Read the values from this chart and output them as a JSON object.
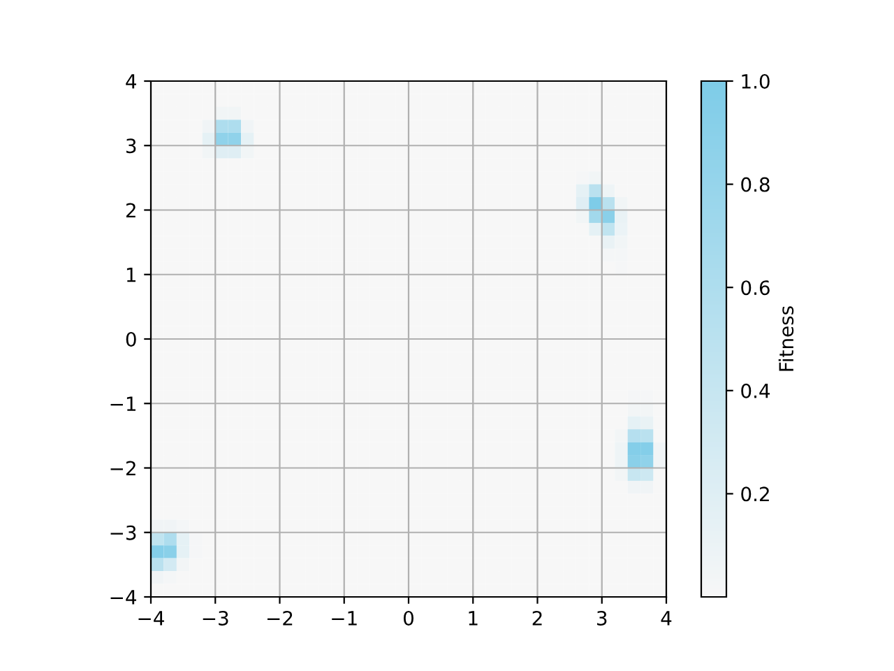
{
  "chart_data": {
    "type": "heatmap",
    "clabel": "Fitness",
    "colors": [
      "#f7f7f7",
      "#7ecce8"
    ],
    "clim": [
      0,
      1
    ],
    "cticks": [
      0.2,
      0.4,
      0.6,
      0.8,
      {
        "value": 1,
        "label": "1.0"
      }
    ],
    "xlim": [
      -4,
      4
    ],
    "ylim": [
      -4,
      4
    ],
    "xticks": [
      {
        "value": -4,
        "label": "−4"
      },
      {
        "value": -3,
        "label": "−3"
      },
      {
        "value": -2,
        "label": "−2"
      },
      {
        "value": -1,
        "label": "−1"
      },
      0,
      1,
      2,
      3,
      4
    ],
    "yticks": [
      {
        "value": -4,
        "label": "−4"
      },
      {
        "value": -3,
        "label": "−3"
      },
      {
        "value": -2,
        "label": "−2"
      },
      {
        "value": -1,
        "label": "−1"
      },
      0,
      1,
      2,
      3,
      4
    ],
    "grid": true,
    "cells": [
      [
        0,
        0,
        0,
        0,
        0,
        0,
        0,
        0,
        0,
        0,
        0,
        0,
        0,
        0,
        0,
        0,
        0,
        0,
        0,
        0,
        0,
        0,
        0,
        0,
        0,
        0,
        0,
        0,
        0,
        0,
        0,
        0,
        0,
        0,
        0,
        0,
        0,
        0,
        0,
        0
      ],
      [
        0,
        0,
        0,
        0,
        0,
        0,
        0,
        0,
        0,
        0,
        0,
        0,
        0,
        0,
        0,
        0,
        0,
        0,
        0,
        0,
        0,
        0,
        0,
        0,
        0,
        0,
        0,
        0,
        0,
        0,
        0,
        0,
        0,
        0,
        0,
        0,
        0,
        0,
        0,
        0
      ],
      [
        0,
        0,
        0,
        0,
        0,
        0.05,
        0.05,
        0,
        0,
        0,
        0,
        0,
        0,
        0,
        0,
        0,
        0,
        0,
        0,
        0,
        0,
        0,
        0,
        0,
        0,
        0,
        0,
        0,
        0,
        0,
        0,
        0,
        0,
        0,
        0,
        0,
        0,
        0,
        0,
        0
      ],
      [
        0,
        0,
        0,
        0,
        0.06,
        0.6,
        0.6,
        0.06,
        0,
        0,
        0,
        0,
        0,
        0,
        0,
        0,
        0,
        0,
        0,
        0,
        0,
        0,
        0,
        0,
        0,
        0,
        0,
        0,
        0,
        0,
        0,
        0,
        0,
        0,
        0,
        0,
        0,
        0,
        0,
        0
      ],
      [
        0,
        0,
        0,
        0,
        0.15,
        0.85,
        0.85,
        0.15,
        0,
        0,
        0,
        0,
        0,
        0,
        0,
        0,
        0,
        0,
        0,
        0,
        0,
        0,
        0,
        0,
        0,
        0,
        0,
        0,
        0,
        0,
        0,
        0,
        0,
        0,
        0,
        0,
        0,
        0,
        0,
        0
      ],
      [
        0,
        0,
        0,
        0,
        0.05,
        0.2,
        0.2,
        0.05,
        0,
        0,
        0,
        0,
        0,
        0,
        0,
        0,
        0,
        0,
        0,
        0,
        0,
        0,
        0,
        0,
        0,
        0,
        0,
        0,
        0,
        0,
        0,
        0,
        0,
        0,
        0,
        0,
        0,
        0,
        0,
        0
      ],
      [
        0,
        0,
        0,
        0,
        0,
        0,
        0,
        0,
        0,
        0,
        0,
        0,
        0,
        0,
        0,
        0,
        0,
        0,
        0,
        0,
        0,
        0,
        0,
        0,
        0,
        0,
        0,
        0,
        0,
        0,
        0,
        0,
        0,
        0,
        0,
        0,
        0,
        0,
        0,
        0
      ],
      [
        0,
        0,
        0,
        0,
        0,
        0,
        0,
        0,
        0,
        0,
        0,
        0,
        0,
        0,
        0,
        0,
        0,
        0,
        0,
        0,
        0,
        0,
        0,
        0,
        0,
        0,
        0,
        0,
        0,
        0,
        0,
        0,
        0,
        0.02,
        0.05,
        0,
        0,
        0,
        0,
        0
      ],
      [
        0,
        0,
        0,
        0,
        0,
        0,
        0,
        0,
        0,
        0,
        0,
        0,
        0,
        0,
        0,
        0,
        0,
        0,
        0,
        0,
        0,
        0,
        0,
        0,
        0,
        0,
        0,
        0,
        0,
        0,
        0,
        0,
        0,
        0.15,
        0.5,
        0.08,
        0,
        0,
        0,
        0
      ],
      [
        0,
        0,
        0,
        0,
        0,
        0,
        0,
        0,
        0,
        0,
        0,
        0,
        0,
        0,
        0,
        0,
        0,
        0,
        0,
        0,
        0,
        0,
        0,
        0,
        0,
        0,
        0,
        0,
        0,
        0,
        0,
        0,
        0,
        0.2,
        1,
        0.5,
        0.05,
        0,
        0,
        0
      ],
      [
        0,
        0,
        0,
        0,
        0,
        0,
        0,
        0,
        0,
        0,
        0,
        0,
        0,
        0,
        0,
        0,
        0,
        0,
        0,
        0,
        0,
        0,
        0,
        0,
        0,
        0,
        0,
        0,
        0,
        0,
        0,
        0,
        0,
        0.05,
        0.7,
        0.9,
        0.12,
        0,
        0,
        0
      ],
      [
        0,
        0,
        0,
        0,
        0,
        0,
        0,
        0,
        0,
        0,
        0,
        0,
        0,
        0,
        0,
        0,
        0,
        0,
        0,
        0,
        0,
        0,
        0,
        0,
        0,
        0,
        0,
        0,
        0,
        0,
        0,
        0,
        0,
        0,
        0.15,
        0.45,
        0.1,
        0,
        0,
        0
      ],
      [
        0,
        0,
        0,
        0,
        0,
        0,
        0,
        0,
        0,
        0,
        0,
        0,
        0,
        0,
        0,
        0,
        0,
        0,
        0,
        0,
        0,
        0,
        0,
        0,
        0,
        0,
        0,
        0,
        0,
        0,
        0,
        0,
        0,
        0,
        0,
        0.12,
        0.05,
        0,
        0,
        0
      ],
      [
        0,
        0,
        0,
        0,
        0,
        0,
        0,
        0,
        0,
        0,
        0,
        0,
        0,
        0,
        0,
        0,
        0,
        0,
        0,
        0,
        0,
        0,
        0,
        0,
        0,
        0,
        0,
        0,
        0,
        0,
        0,
        0,
        0,
        0,
        0,
        0.03,
        0.03,
        0,
        0,
        0
      ],
      [
        0,
        0,
        0,
        0,
        0,
        0,
        0,
        0,
        0,
        0,
        0,
        0,
        0,
        0,
        0,
        0,
        0,
        0,
        0,
        0,
        0,
        0,
        0,
        0,
        0,
        0,
        0,
        0,
        0,
        0,
        0,
        0,
        0,
        0,
        0,
        0,
        0.02,
        0,
        0,
        0
      ],
      [
        0,
        0,
        0,
        0,
        0,
        0,
        0,
        0,
        0,
        0,
        0,
        0,
        0,
        0,
        0,
        0,
        0,
        0,
        0,
        0,
        0,
        0,
        0,
        0,
        0,
        0,
        0,
        0,
        0,
        0,
        0,
        0,
        0,
        0,
        0,
        0,
        0,
        0,
        0,
        0
      ],
      [
        0,
        0,
        0,
        0,
        0,
        0,
        0,
        0,
        0,
        0,
        0,
        0,
        0,
        0,
        0,
        0,
        0,
        0,
        0,
        0,
        0,
        0,
        0,
        0,
        0,
        0,
        0,
        0,
        0,
        0,
        0,
        0,
        0,
        0,
        0,
        0,
        0,
        0,
        0,
        0
      ],
      [
        0,
        0,
        0,
        0,
        0,
        0,
        0,
        0,
        0,
        0,
        0,
        0,
        0,
        0,
        0,
        0,
        0,
        0,
        0,
        0,
        0,
        0,
        0,
        0,
        0,
        0,
        0,
        0,
        0,
        0,
        0,
        0,
        0,
        0,
        0,
        0,
        0,
        0,
        0,
        0
      ],
      [
        0,
        0,
        0,
        0,
        0,
        0,
        0,
        0,
        0,
        0,
        0,
        0,
        0,
        0,
        0,
        0,
        0,
        0,
        0,
        0,
        0,
        0,
        0,
        0,
        0,
        0,
        0,
        0,
        0,
        0,
        0,
        0,
        0,
        0,
        0,
        0,
        0,
        0,
        0,
        0
      ],
      [
        0,
        0,
        0,
        0,
        0,
        0,
        0,
        0,
        0,
        0,
        0,
        0,
        0,
        0,
        0,
        0,
        0,
        0,
        0,
        0,
        0,
        0,
        0,
        0,
        0,
        0,
        0,
        0,
        0,
        0,
        0,
        0,
        0,
        0,
        0,
        0,
        0,
        0,
        0,
        0
      ],
      [
        0,
        0,
        0,
        0,
        0,
        0,
        0,
        0,
        0,
        0,
        0,
        0,
        0,
        0,
        0,
        0,
        0,
        0,
        0,
        0,
        0,
        0,
        0,
        0,
        0,
        0,
        0,
        0,
        0,
        0,
        0,
        0,
        0,
        0,
        0,
        0,
        0,
        0,
        0,
        0
      ],
      [
        0,
        0,
        0,
        0,
        0,
        0,
        0,
        0,
        0,
        0,
        0,
        0,
        0,
        0,
        0,
        0,
        0,
        0,
        0,
        0,
        0,
        0,
        0,
        0,
        0,
        0,
        0,
        0,
        0,
        0,
        0,
        0,
        0,
        0,
        0,
        0,
        0,
        0,
        0,
        0
      ],
      [
        0,
        0,
        0,
        0,
        0,
        0,
        0,
        0,
        0,
        0,
        0,
        0,
        0,
        0,
        0,
        0,
        0,
        0,
        0,
        0,
        0,
        0,
        0,
        0,
        0,
        0,
        0,
        0,
        0,
        0,
        0,
        0,
        0,
        0,
        0,
        0,
        0,
        0,
        0,
        0
      ],
      [
        0,
        0,
        0,
        0,
        0,
        0,
        0,
        0,
        0,
        0,
        0,
        0,
        0,
        0,
        0,
        0,
        0,
        0,
        0,
        0,
        0,
        0,
        0,
        0,
        0,
        0,
        0,
        0,
        0,
        0,
        0,
        0,
        0,
        0,
        0,
        0,
        0,
        0,
        0,
        0
      ],
      [
        0,
        0,
        0,
        0,
        0,
        0,
        0,
        0,
        0,
        0,
        0,
        0,
        0,
        0,
        0,
        0,
        0,
        0,
        0,
        0,
        0,
        0,
        0,
        0,
        0,
        0,
        0,
        0,
        0,
        0,
        0,
        0,
        0,
        0,
        0,
        0,
        0,
        0.02,
        0.02,
        0
      ],
      [
        0,
        0,
        0,
        0,
        0,
        0,
        0,
        0,
        0,
        0,
        0,
        0,
        0,
        0,
        0,
        0,
        0,
        0,
        0,
        0,
        0,
        0,
        0,
        0,
        0,
        0,
        0,
        0,
        0,
        0,
        0,
        0,
        0,
        0,
        0,
        0,
        0,
        0.04,
        0.04,
        0
      ],
      [
        0,
        0,
        0,
        0,
        0,
        0,
        0,
        0,
        0,
        0,
        0,
        0,
        0,
        0,
        0,
        0,
        0,
        0,
        0,
        0,
        0,
        0,
        0,
        0,
        0,
        0,
        0,
        0,
        0,
        0,
        0,
        0,
        0,
        0,
        0,
        0,
        0,
        0.15,
        0.12,
        0
      ],
      [
        0,
        0,
        0,
        0,
        0,
        0,
        0,
        0,
        0,
        0,
        0,
        0,
        0,
        0,
        0,
        0,
        0,
        0,
        0,
        0,
        0,
        0,
        0,
        0,
        0,
        0,
        0,
        0,
        0,
        0,
        0,
        0,
        0,
        0,
        0,
        0,
        0.04,
        0.55,
        0.5,
        0
      ],
      [
        0,
        0,
        0,
        0,
        0,
        0,
        0,
        0,
        0,
        0,
        0,
        0,
        0,
        0,
        0,
        0,
        0,
        0,
        0,
        0,
        0,
        0,
        0,
        0,
        0,
        0,
        0,
        0,
        0,
        0,
        0,
        0,
        0,
        0,
        0,
        0,
        0.08,
        0.95,
        0.95,
        0.06
      ],
      [
        0,
        0,
        0,
        0,
        0,
        0,
        0,
        0,
        0,
        0,
        0,
        0,
        0,
        0,
        0,
        0,
        0,
        0,
        0,
        0,
        0,
        0,
        0,
        0,
        0,
        0,
        0,
        0,
        0,
        0,
        0,
        0,
        0,
        0,
        0,
        0,
        0.08,
        0.9,
        0.85,
        0.06
      ],
      [
        0,
        0,
        0,
        0,
        0,
        0,
        0,
        0,
        0,
        0,
        0,
        0,
        0,
        0,
        0,
        0,
        0,
        0,
        0,
        0,
        0,
        0,
        0,
        0,
        0,
        0,
        0,
        0,
        0,
        0,
        0,
        0,
        0,
        0,
        0,
        0,
        0.04,
        0.4,
        0.35,
        0
      ],
      [
        0,
        0,
        0,
        0,
        0,
        0,
        0,
        0,
        0,
        0,
        0,
        0,
        0,
        0,
        0,
        0,
        0,
        0,
        0,
        0,
        0,
        0,
        0,
        0,
        0,
        0,
        0,
        0,
        0,
        0,
        0,
        0,
        0,
        0,
        0,
        0,
        0,
        0.06,
        0.06,
        0
      ],
      [
        0,
        0,
        0,
        0,
        0,
        0,
        0,
        0,
        0,
        0,
        0,
        0,
        0,
        0,
        0,
        0,
        0,
        0,
        0,
        0,
        0,
        0,
        0,
        0,
        0,
        0,
        0,
        0,
        0,
        0,
        0,
        0,
        0,
        0,
        0,
        0,
        0,
        0,
        0,
        0
      ],
      [
        0,
        0,
        0,
        0,
        0,
        0,
        0,
        0,
        0,
        0,
        0,
        0,
        0,
        0,
        0,
        0,
        0,
        0,
        0,
        0,
        0,
        0,
        0,
        0,
        0,
        0,
        0,
        0,
        0,
        0,
        0,
        0,
        0,
        0,
        0,
        0,
        0,
        0,
        0,
        0
      ],
      [
        0.06,
        0.06,
        0.03,
        0,
        0,
        0,
        0,
        0,
        0,
        0,
        0,
        0,
        0,
        0,
        0,
        0,
        0,
        0,
        0,
        0,
        0,
        0,
        0,
        0,
        0,
        0,
        0,
        0,
        0,
        0,
        0,
        0,
        0,
        0,
        0,
        0,
        0,
        0,
        0,
        0
      ],
      [
        0.45,
        0.6,
        0.15,
        0.02,
        0,
        0,
        0,
        0,
        0,
        0,
        0,
        0,
        0,
        0,
        0,
        0,
        0,
        0,
        0,
        0,
        0,
        0,
        0,
        0,
        0,
        0,
        0,
        0,
        0,
        0,
        0,
        0,
        0,
        0,
        0,
        0,
        0,
        0,
        0,
        0
      ],
      [
        0.95,
        0.9,
        0.15,
        0.02,
        0,
        0,
        0,
        0,
        0,
        0,
        0,
        0,
        0,
        0,
        0,
        0,
        0,
        0,
        0,
        0,
        0,
        0,
        0,
        0,
        0,
        0,
        0,
        0,
        0,
        0,
        0,
        0,
        0,
        0,
        0,
        0,
        0,
        0,
        0,
        0
      ],
      [
        0.5,
        0.3,
        0.04,
        0,
        0,
        0,
        0,
        0,
        0,
        0,
        0,
        0,
        0,
        0,
        0,
        0,
        0,
        0,
        0,
        0,
        0,
        0,
        0,
        0,
        0,
        0,
        0,
        0,
        0,
        0,
        0,
        0,
        0,
        0,
        0,
        0,
        0,
        0,
        0,
        0
      ],
      [
        0.06,
        0.03,
        0,
        0,
        0,
        0,
        0,
        0,
        0,
        0,
        0,
        0,
        0,
        0,
        0,
        0,
        0,
        0,
        0,
        0,
        0,
        0,
        0,
        0,
        0,
        0,
        0,
        0,
        0,
        0,
        0,
        0,
        0,
        0,
        0,
        0,
        0,
        0,
        0,
        0
      ],
      [
        0,
        0,
        0,
        0,
        0,
        0,
        0,
        0,
        0,
        0,
        0,
        0,
        0,
        0,
        0,
        0,
        0,
        0,
        0,
        0,
        0,
        0,
        0,
        0,
        0,
        0,
        0,
        0,
        0,
        0,
        0,
        0,
        0,
        0,
        0,
        0,
        0,
        0,
        0,
        0
      ]
    ]
  }
}
